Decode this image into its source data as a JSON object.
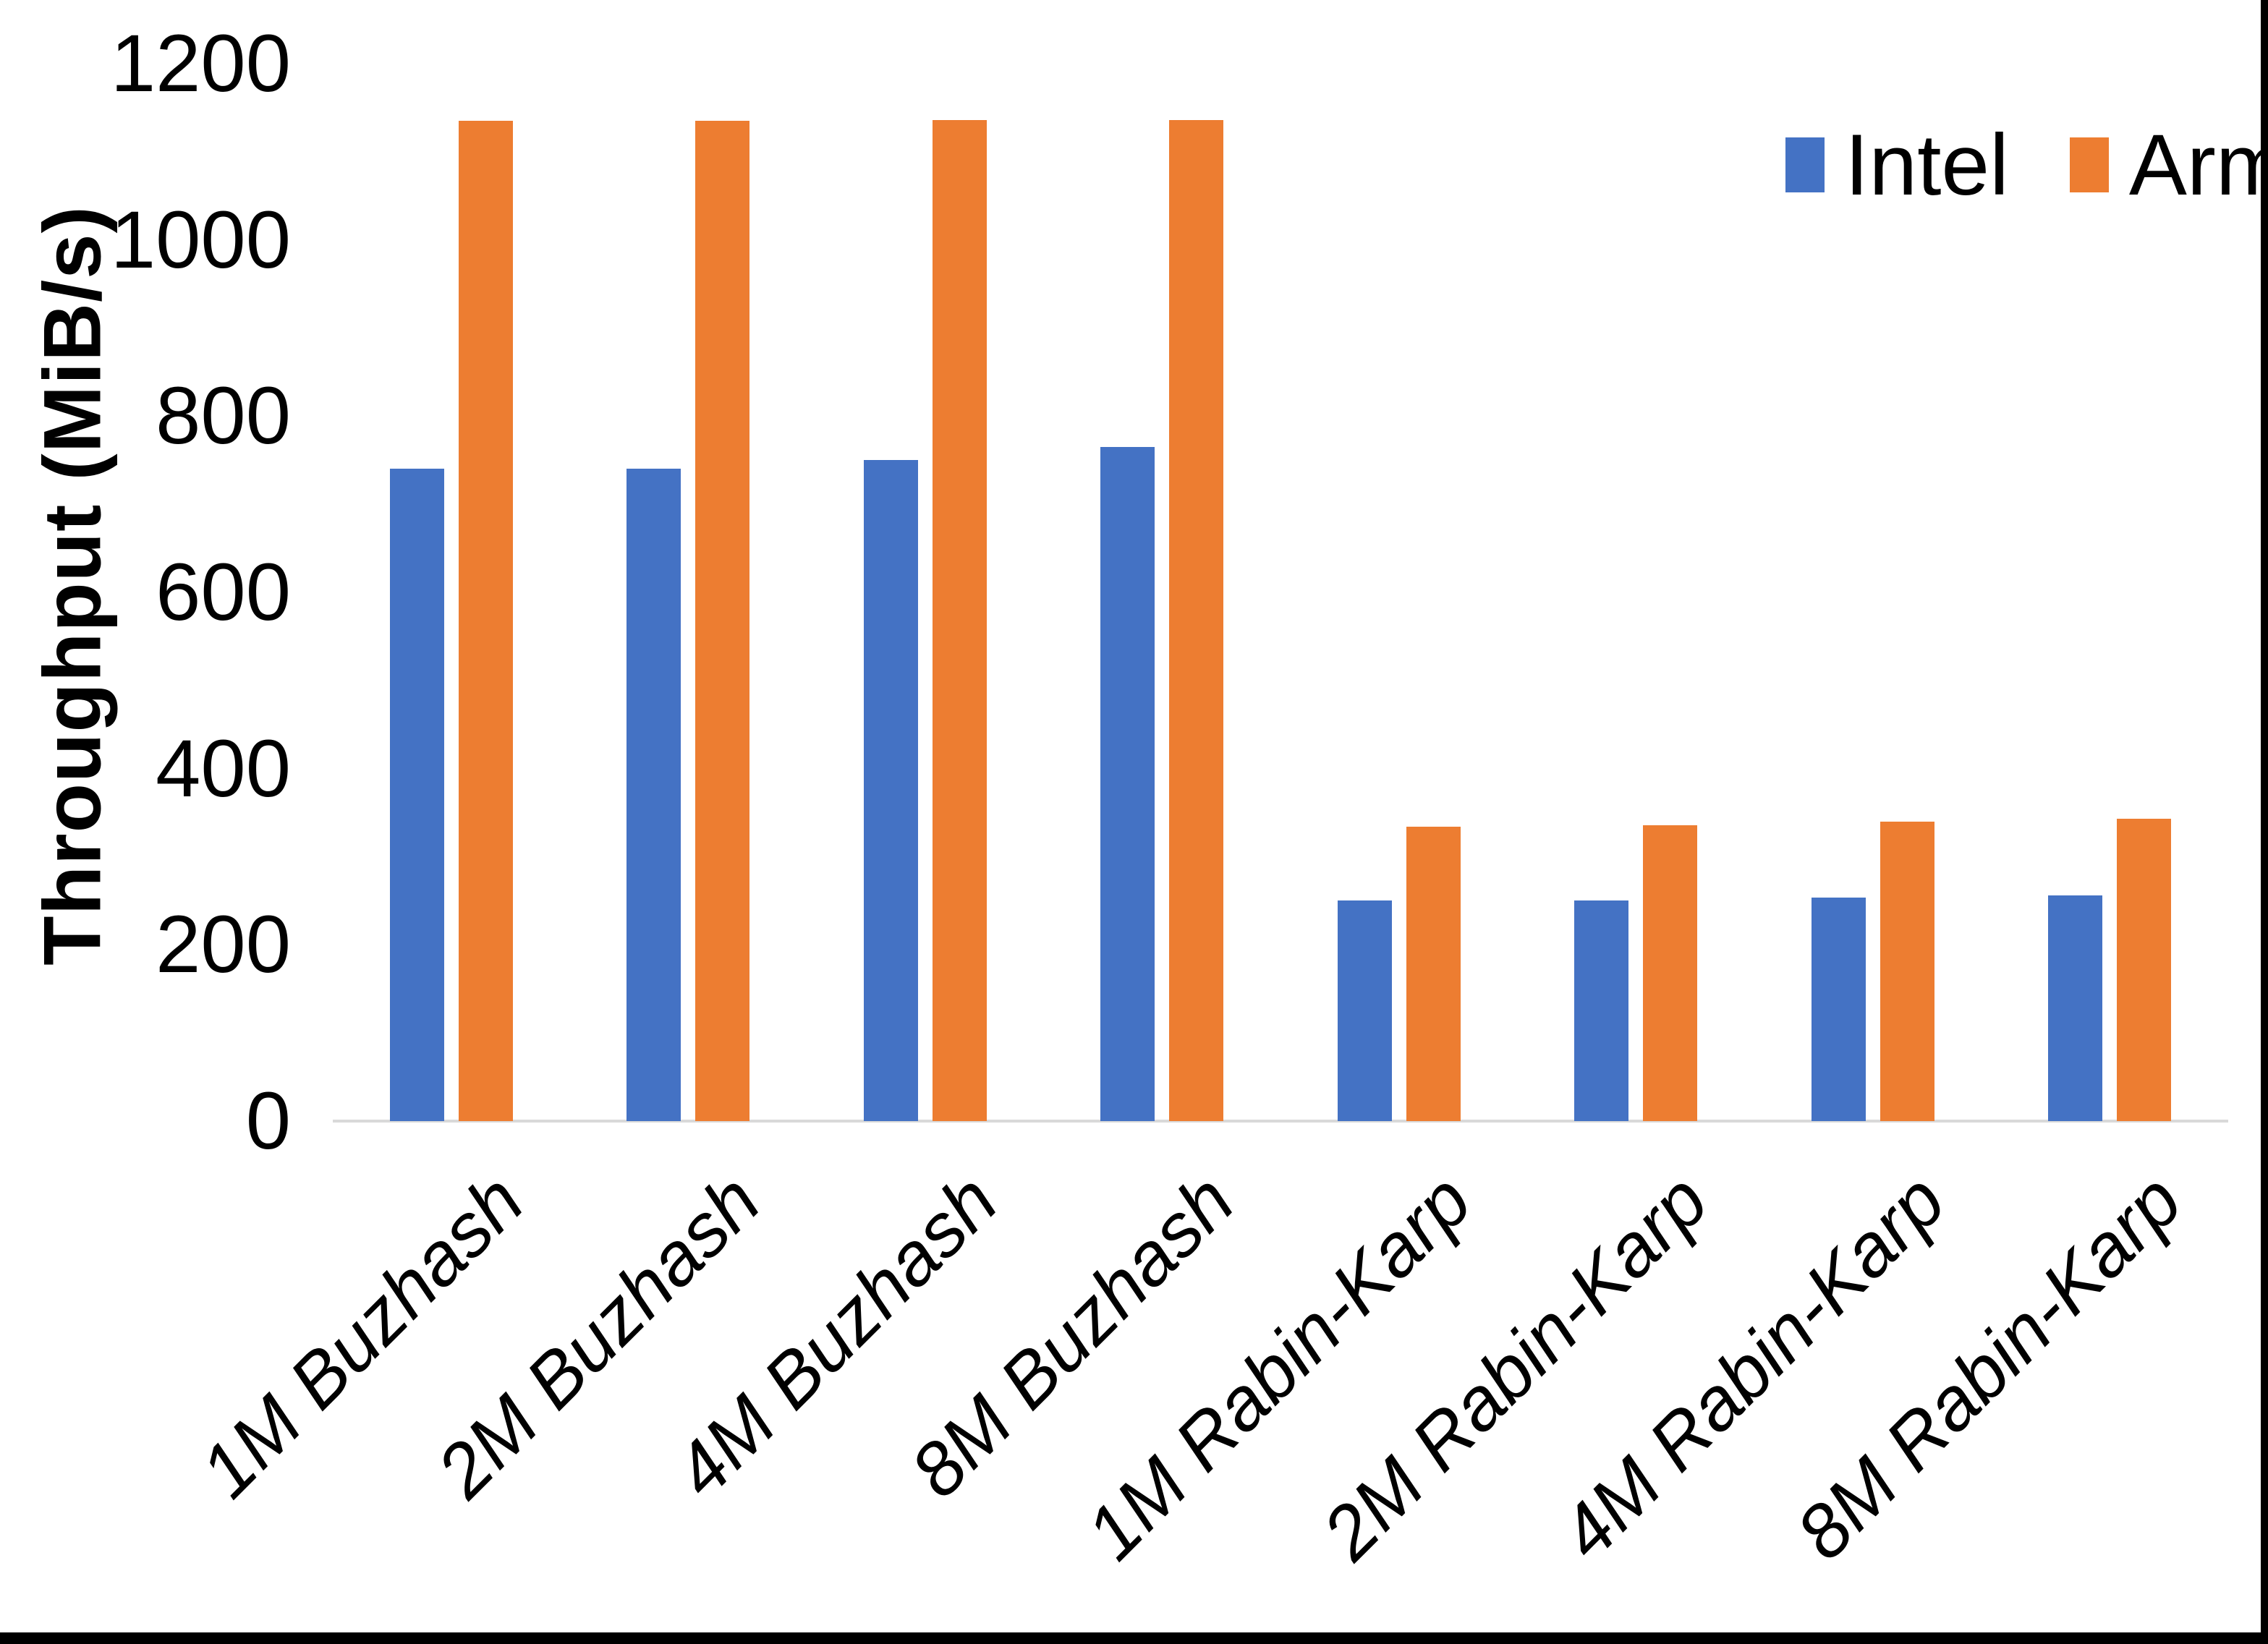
{
  "chart_data": {
    "type": "bar",
    "title": "",
    "xlabel": "",
    "ylabel": "Throughput (MiB/s)",
    "ylim": [
      0,
      1200
    ],
    "yticks": [
      0,
      200,
      400,
      600,
      800,
      1000,
      1200
    ],
    "y_tick_labels": [
      "0",
      "200",
      "400",
      "600",
      "800",
      "1000",
      "1200"
    ],
    "grid": false,
    "legend_position": "top-right",
    "categories": [
      "1M Buzhash",
      "2M Buzhash",
      "4M Buzhash",
      "8M Buzhash",
      "1M Rabin-Karp",
      "2M Rabin-Karp",
      "4M Rabin-Karp",
      "8M Rabin-Karp"
    ],
    "series": [
      {
        "name": "Intel",
        "color": "#4472C4",
        "values": [
          740,
          740,
          750,
          765,
          250,
          250,
          254,
          256
        ]
      },
      {
        "name": "Arm",
        "color": "#ED7D31",
        "values": [
          1135,
          1135,
          1136,
          1136,
          334,
          336,
          340,
          343
        ]
      }
    ]
  },
  "legend": {
    "items": [
      {
        "label": "Intel",
        "color": "#4472C4"
      },
      {
        "label": "Arm",
        "color": "#ED7D31"
      }
    ]
  },
  "colors": {
    "background": "#FFFFFF",
    "text": "#000000",
    "axis_line": "#D9D9D9",
    "frame": "#000000"
  }
}
